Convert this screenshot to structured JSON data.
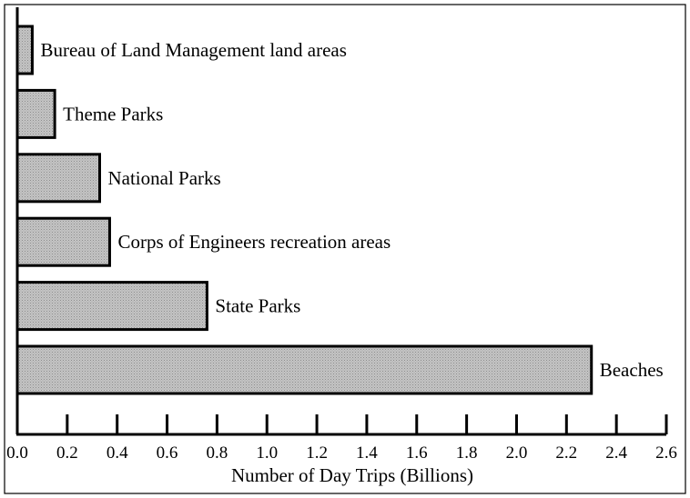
{
  "chart_data": {
    "type": "bar",
    "orientation": "horizontal",
    "categories": [
      "Bureau of Land Management land areas",
      "Theme Parks",
      "National Parks",
      "Corps of Engineers recreation areas",
      "State Parks",
      "Beaches"
    ],
    "values": [
      0.06,
      0.15,
      0.33,
      0.37,
      0.76,
      2.3
    ],
    "title": "",
    "xlabel": "Number of Day Trips (Billions)",
    "ylabel": "",
    "xlim": [
      0.0,
      2.6
    ],
    "xticks": [
      "0.0",
      "0.2",
      "0.4",
      "0.6",
      "0.8",
      "1.0",
      "1.2",
      "1.4",
      "1.6",
      "1.8",
      "2.0",
      "2.2",
      "2.4",
      "2.6"
    ],
    "grid": false,
    "legend": "none",
    "bar_color": "#c0c0c0",
    "bar_edge_color": "#000000",
    "labels_position": "right-of-bar"
  }
}
